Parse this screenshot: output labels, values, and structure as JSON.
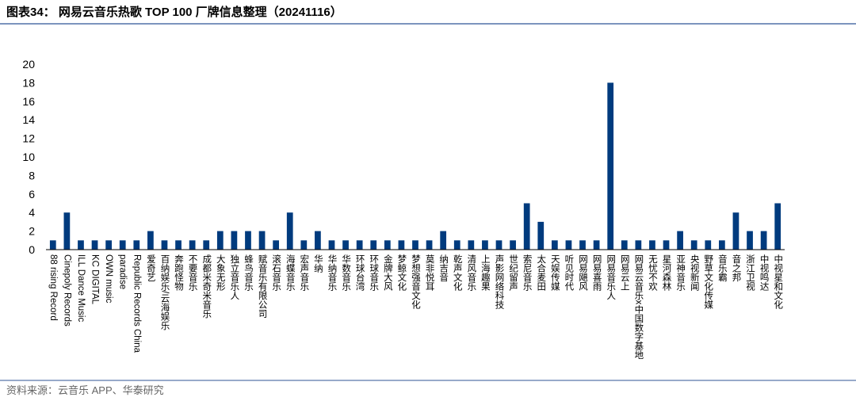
{
  "chart_data": {
    "type": "bar",
    "title": "图表34：  网易云音乐热歌 TOP 100  厂牌信息整理（20241116）",
    "source": "资料来源：云音乐 APP、华泰研究",
    "categories": [
      "88 rising Record",
      "Cinepoly Records",
      "ILL Dance Music",
      "KC DIGITAL",
      "OWN music",
      "paradise",
      "Republic Records China",
      "爱奇艺",
      "百纳娱乐/云海娱乐",
      "奔跑怪物",
      "不要音乐",
      "成都米奇米音乐",
      "大象无形",
      "独立音乐人",
      "蜂鸟音乐",
      "赋音乐有限公司",
      "滚石音乐",
      "海蝶音乐",
      "宏声音乐",
      "华纳",
      "华纳音乐",
      "华数音乐",
      "环球台湾",
      "环球音乐",
      "金牌大风",
      "梦鲸文化",
      "梦想强音文化",
      "莫非悦耳",
      "纳吉音",
      "乾声文化",
      "清风音乐",
      "上海趣果",
      "声影网络科技",
      "世纪留声",
      "索尼音乐",
      "太合麦田",
      "天娱传媒",
      "听见时代",
      "网易飓风",
      "网易喜雨",
      "网易音乐人",
      "网易云上",
      "网易云音乐x中国数字基地",
      "无忧不欢",
      "星河森林",
      "亚神音乐",
      "央视新闻",
      "野草文化传媒",
      "音乐霸",
      "音之邦",
      "浙江卫视",
      "中视鸣达",
      "中视星和文化"
    ],
    "values": [
      1,
      4,
      1,
      1,
      1,
      1,
      1,
      2,
      1,
      1,
      1,
      1,
      2,
      2,
      2,
      2,
      1,
      4,
      1,
      2,
      1,
      1,
      1,
      1,
      1,
      1,
      1,
      1,
      2,
      1,
      1,
      1,
      1,
      1,
      5,
      3,
      1,
      1,
      1,
      1,
      18,
      1,
      1,
      1,
      1,
      2,
      1,
      1,
      1,
      4,
      2,
      2,
      5
    ],
    "color": "#003b7e",
    "ylim": [
      0,
      20
    ],
    "yticks": [
      0,
      2,
      4,
      6,
      8,
      10,
      12,
      14,
      16,
      18,
      20
    ],
    "grid": false
  }
}
